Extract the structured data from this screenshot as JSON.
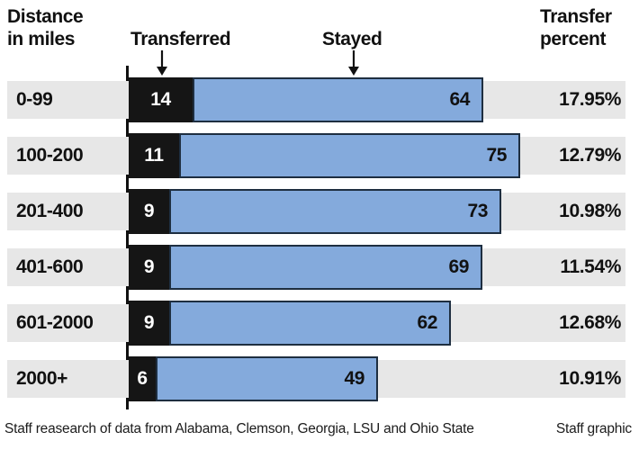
{
  "header": {
    "distance_label": "Distance\nin miles",
    "transferred_label": "Transferred",
    "stayed_label": "Stayed",
    "percent_label": "Transfer\npercent"
  },
  "chart_data": {
    "type": "bar",
    "orientation": "horizontal",
    "stacked": true,
    "categories": [
      "0-99",
      "100-200",
      "201-400",
      "401-600",
      "601-2000",
      "2000+"
    ],
    "series": [
      {
        "name": "Transferred",
        "values": [
          14,
          11,
          9,
          9,
          9,
          6
        ]
      },
      {
        "name": "Stayed",
        "values": [
          64,
          75,
          73,
          69,
          62,
          49
        ]
      }
    ],
    "transfer_percent": [
      "17.95%",
      "12.79%",
      "10.98%",
      "11.54%",
      "12.68%",
      "10.91%"
    ],
    "title": "",
    "xlabel": "",
    "ylabel": "Distance in miles",
    "legend_position": "top-arrows",
    "grid": false
  },
  "colors": {
    "transferred_bar": "#151515",
    "stayed_bar": "#84aadc",
    "stayed_bar_border": "#1e2e40",
    "row_band": "#e7e7e7",
    "text": "#111111"
  },
  "footer": {
    "source": "Staff reasearch of data from Alabama, Clemson, Georgia, LSU and Ohio State",
    "credit": "Staff graphic"
  }
}
